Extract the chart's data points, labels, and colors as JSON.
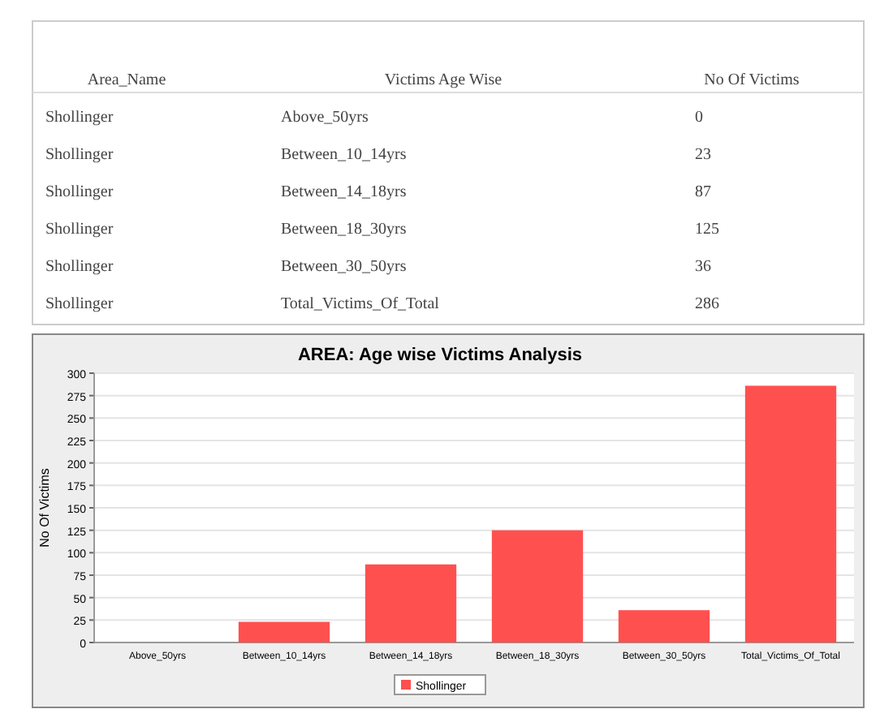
{
  "chart_data": [
    {
      "type": "other",
      "annotations": [
        "Area_Name",
        "Victims Age Wise",
        "No Of Victims"
      ],
      "categories": [
        "Above_50yrs",
        "Between_10_14yrs",
        "Between_14_18yrs",
        "Between_18_30yrs",
        "Between_30_50yrs",
        "Total_Victims_Of_Total"
      ],
      "series": [
        {
          "name": "Shollinger",
          "values": [
            0,
            23,
            87,
            125,
            36,
            286
          ]
        }
      ],
      "data_labels": true
    },
    {
      "type": "bar",
      "title": "AREA: Age wise Victims Analysis",
      "ylabel": "No Of Victims",
      "categories": [
        "Above_50yrs",
        "Between_10_14yrs",
        "Between_14_18yrs",
        "Between_18_30yrs",
        "Between_30_50yrs",
        "Total_Victims_Of_Total"
      ],
      "series": [
        {
          "name": "Shollinger",
          "color": "#ff5050",
          "values": [
            0,
            23,
            87,
            125,
            36,
            286
          ]
        }
      ],
      "ylim": [
        0,
        300
      ],
      "yticks": [
        0,
        25,
        50,
        75,
        100,
        125,
        150,
        175,
        200,
        225,
        250,
        275,
        300
      ],
      "grid": "y",
      "legend": "bottom"
    }
  ]
}
